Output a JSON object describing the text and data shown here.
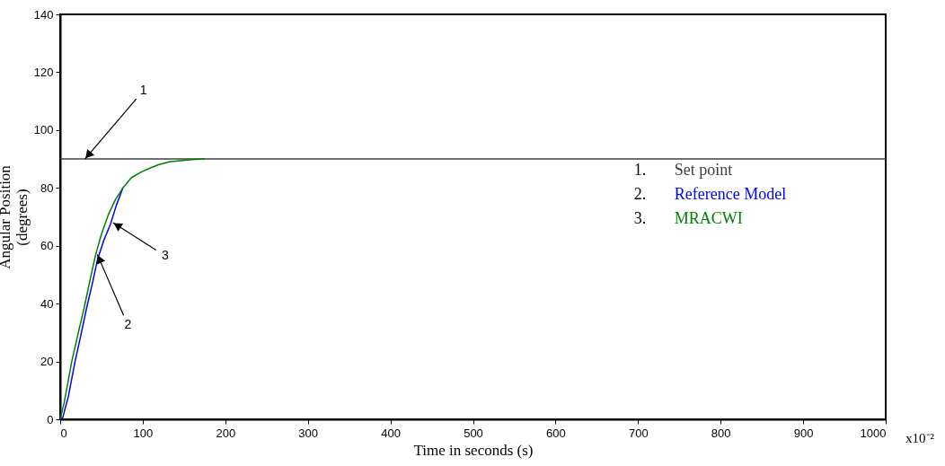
{
  "chart_data": {
    "type": "line",
    "xlabel": "Time in seconds (s)",
    "ylabel": "Angular Position\n(degrees)",
    "xlim": [
      0,
      1000
    ],
    "xticks": [
      0,
      100,
      200,
      300,
      400,
      500,
      600,
      700,
      800,
      900,
      1000
    ],
    "ylim": [
      0,
      140
    ],
    "yticks": [
      0,
      20,
      40,
      60,
      80,
      100,
      120,
      140
    ],
    "grid": false,
    "marker": "none",
    "line_style": "solid",
    "series": [
      {
        "name": "Set point",
        "color": "#404040",
        "x": [
          0,
          1000
        ],
        "values": [
          90,
          90
        ]
      },
      {
        "name": "Reference Model",
        "color": "#0000ff",
        "x": [
          0,
          3,
          10,
          18,
          25,
          32,
          39,
          45,
          53,
          61,
          68,
          76
        ],
        "values": [
          0,
          0.5,
          8,
          20,
          29,
          38.5,
          47,
          55,
          62,
          67.5,
          74,
          80
        ]
      },
      {
        "name": "MRACWI",
        "color": "#008000",
        "x": [
          0,
          5,
          14,
          22,
          29,
          36,
          43,
          50,
          58,
          67,
          76,
          86,
          98,
          110,
          119,
          132,
          145,
          160,
          175
        ],
        "values": [
          0,
          6,
          20,
          30,
          38.5,
          48,
          57,
          64,
          70.5,
          76,
          80,
          83.5,
          85.5,
          87,
          88,
          89,
          89.4,
          89.8,
          90
        ]
      }
    ],
    "annotations": [
      {
        "text": "1",
        "x": 30,
        "y": 90
      },
      {
        "text": "2",
        "x": 45,
        "y": 57
      },
      {
        "text": "3",
        "x": 64,
        "y": 68
      },
      "1.",
      "2.",
      "3.",
      "x10⁻²"
    ]
  }
}
